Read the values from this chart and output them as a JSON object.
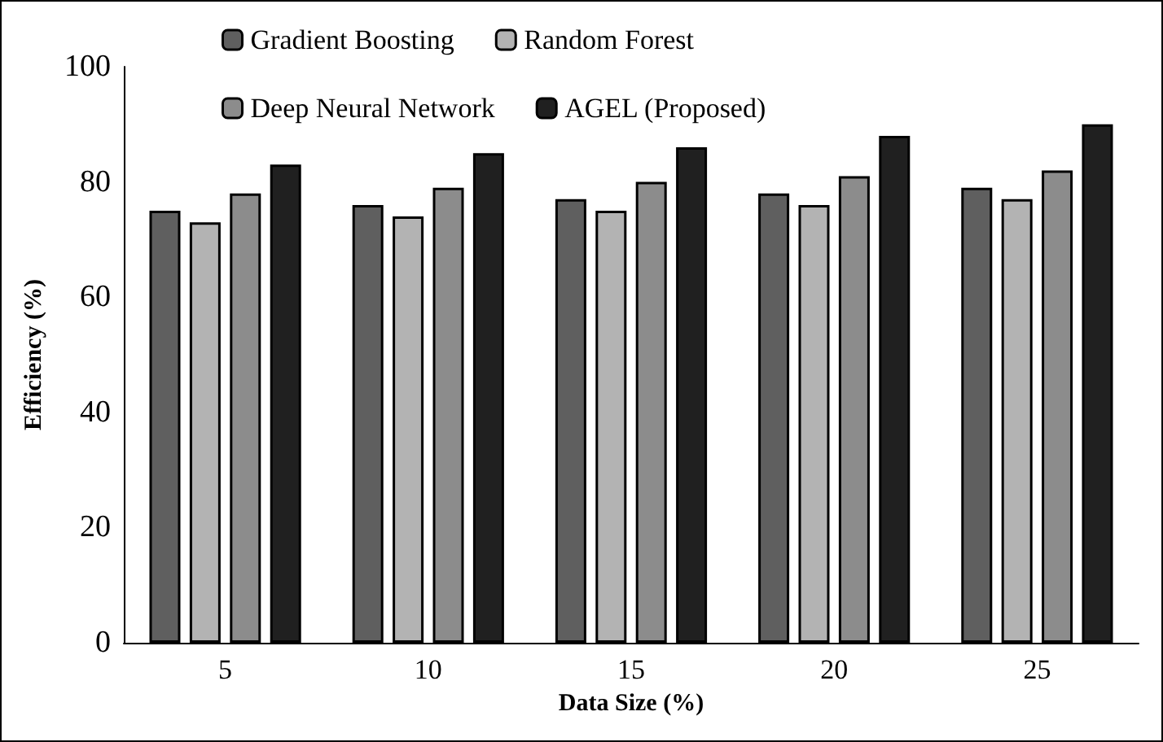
{
  "chart_data": {
    "type": "bar",
    "xlabel": "Data Size (%)",
    "ylabel": "Efficiency (%)",
    "categories": [
      "5",
      "10",
      "15",
      "20",
      "25"
    ],
    "series": [
      {
        "name": "Gradient Boosting",
        "color": "#5f5f5f",
        "values": [
          75,
          76,
          77,
          78,
          79
        ]
      },
      {
        "name": "Random Forest",
        "color": "#b3b3b3",
        "values": [
          73,
          74,
          75,
          76,
          77
        ]
      },
      {
        "name": "Deep Neural Network",
        "color": "#8c8c8c",
        "values": [
          78,
          79,
          80,
          81,
          82
        ]
      },
      {
        "name": "AGEL (Proposed)",
        "color": "#202020",
        "values": [
          83,
          85,
          86,
          88,
          90
        ]
      }
    ],
    "ylim": [
      0,
      100
    ],
    "yticks": [
      0,
      20,
      40,
      60,
      80,
      100
    ],
    "grid": false,
    "legend": "top"
  }
}
